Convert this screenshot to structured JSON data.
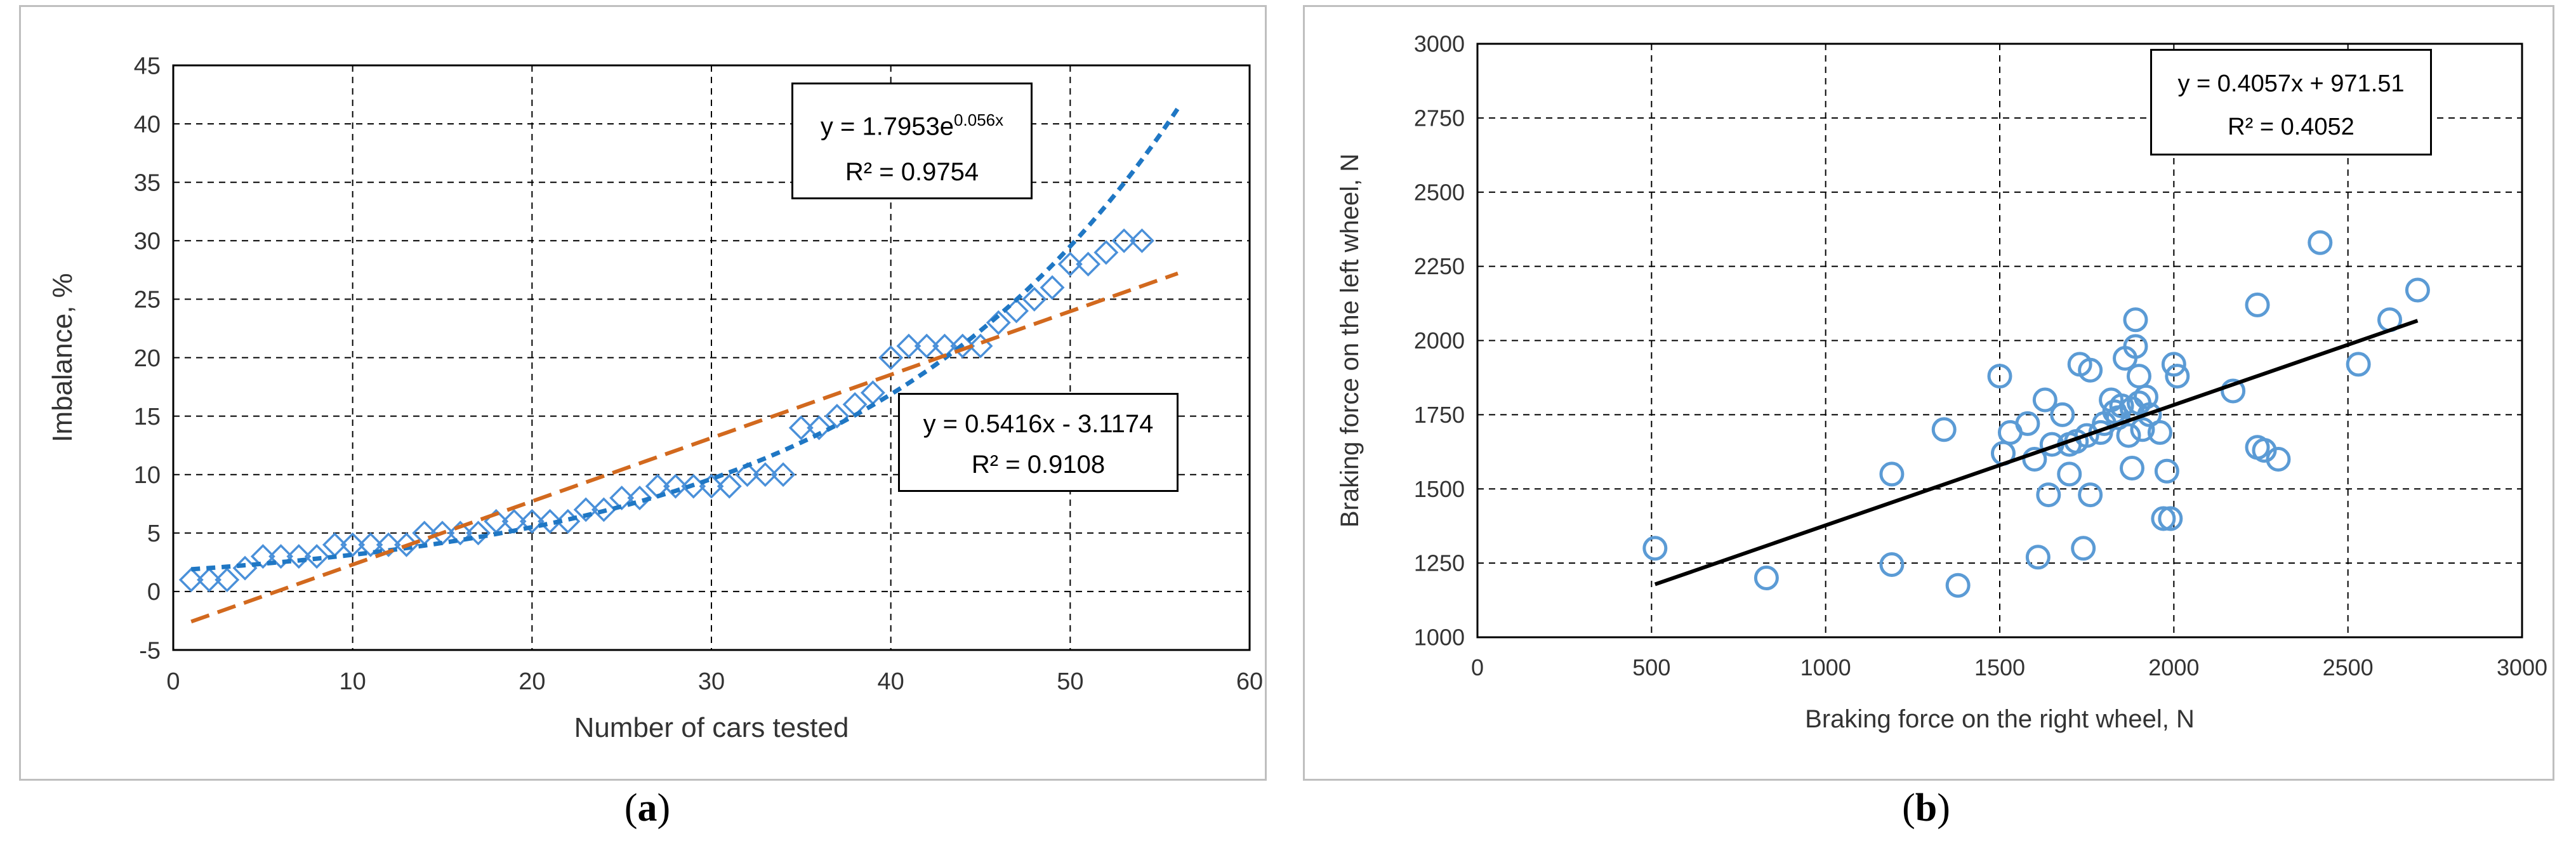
{
  "chart_data": [
    {
      "panel": "a",
      "type": "scatter",
      "xlabel": "Number of cars tested",
      "ylabel": "Imbalance, %",
      "xlim": [
        0,
        60
      ],
      "ylim": [
        -5,
        45
      ],
      "xticks": [
        0,
        10,
        20,
        30,
        40,
        50,
        60
      ],
      "yticks": [
        -5,
        0,
        5,
        10,
        15,
        20,
        25,
        30,
        35,
        40,
        45
      ],
      "grid": "horizontal and vertical dashed",
      "marker": "diamond",
      "color": "#4a90d9",
      "points": {
        "x": [
          1,
          2,
          3,
          4,
          5,
          6,
          7,
          8,
          9,
          10,
          11,
          12,
          13,
          14,
          15,
          16,
          17,
          18,
          19,
          20,
          21,
          22,
          23,
          24,
          25,
          26,
          27,
          28,
          29,
          30,
          31,
          32,
          33,
          34,
          35,
          36,
          37,
          38,
          39,
          40,
          41,
          42,
          43,
          44,
          45,
          46,
          47,
          48,
          49,
          50,
          51,
          52,
          53,
          54
        ],
        "y": [
          1,
          1,
          1,
          2,
          3,
          3,
          3,
          3,
          4,
          4,
          4,
          4,
          4,
          5,
          5,
          5,
          5,
          6,
          6,
          6,
          6,
          6,
          7,
          7,
          8,
          8,
          9,
          9,
          9,
          9,
          9,
          10,
          10,
          10,
          14,
          14,
          15,
          16,
          17,
          20,
          21,
          21,
          21,
          21,
          21,
          23,
          24,
          25,
          26,
          28,
          28,
          29,
          30,
          30
        ]
      },
      "trendlines": [
        {
          "kind": "exponential",
          "a": 1.7953,
          "b": 0.056,
          "color": "#1f77c4",
          "equation": "y = 1.7953e",
          "exponent": "0.056x",
          "r2": "R² = 0.9754"
        },
        {
          "kind": "linear",
          "slope": 0.5416,
          "intercept": -3.1174,
          "color": "#d2691e",
          "equation": "y = 0.5416x - 3.1174",
          "r2": "R² = 0.9108"
        }
      ]
    },
    {
      "panel": "b",
      "type": "scatter",
      "xlabel": "Braking force on the right wheel,  N",
      "ylabel": "Braking force on the left wheel, N",
      "xlim": [
        0,
        3000
      ],
      "ylim": [
        1000,
        3000
      ],
      "xticks": [
        0,
        500,
        1000,
        1500,
        2000,
        2500,
        3000
      ],
      "yticks": [
        1000,
        1250,
        1500,
        1750,
        2000,
        2250,
        2500,
        2750,
        3000
      ],
      "grid": "horizontal and vertical dashed",
      "marker": "circle",
      "color": "#5b9bd5",
      "points": {
        "x": [
          510,
          830,
          1190,
          1190,
          1340,
          1380,
          1500,
          1510,
          1530,
          1580,
          1600,
          1610,
          1630,
          1640,
          1650,
          1680,
          1700,
          1700,
          1720,
          1730,
          1740,
          1750,
          1760,
          1760,
          1790,
          1800,
          1820,
          1830,
          1840,
          1850,
          1860,
          1870,
          1880,
          1880,
          1890,
          1890,
          1900,
          1900,
          1910,
          1920,
          1930,
          1960,
          1970,
          1980,
          1990,
          2000,
          2010,
          2170,
          2240,
          2240,
          2260,
          2300,
          2420,
          2530,
          2620,
          2700
        ],
        "y": [
          1300,
          1200,
          1550,
          1245,
          1700,
          1175,
          1880,
          1620,
          1690,
          1720,
          1600,
          1270,
          1800,
          1480,
          1650,
          1750,
          1550,
          1650,
          1660,
          1920,
          1300,
          1680,
          1900,
          1480,
          1690,
          1720,
          1800,
          1760,
          1740,
          1780,
          1940,
          1680,
          1570,
          1770,
          2070,
          1980,
          1790,
          1880,
          1700,
          1810,
          1750,
          1690,
          1400,
          1560,
          1400,
          1920,
          1880,
          1830,
          2120,
          1640,
          1630,
          1600,
          2330,
          1920,
          2070,
          2170
        ]
      },
      "trendlines": [
        {
          "kind": "linear",
          "slope": 0.4057,
          "intercept": 971.51,
          "xrange": [
            510,
            2700
          ],
          "color": "#000000",
          "equation": "y = 0.4057x + 971.51",
          "r2": "R² = 0.4052"
        }
      ]
    }
  ],
  "captions": {
    "a": "a",
    "b": "b"
  }
}
